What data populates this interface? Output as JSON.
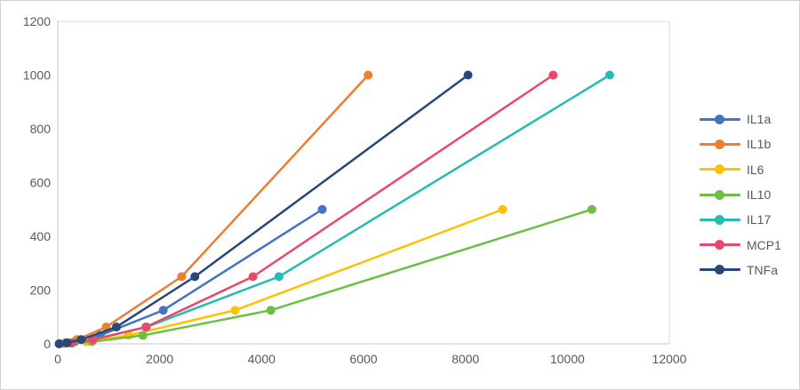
{
  "chart_data": {
    "type": "line",
    "title": "",
    "xlabel": "",
    "ylabel": "",
    "grid": false,
    "legend_position": "right",
    "x_axis": {
      "min": 0,
      "max": 12000,
      "tick_step": 2000,
      "tick_labels": [
        "0",
        "2000",
        "4000",
        "6000",
        "8000",
        "10000",
        "12000"
      ]
    },
    "y_axis": {
      "min": 0,
      "max": 1200,
      "tick_step": 200,
      "tick_labels": [
        "0",
        "200",
        "400",
        "600",
        "800",
        "1000",
        "1200"
      ]
    },
    "series": [
      {
        "name": "IL1a",
        "color": "#4472C4",
        "x": [
          25,
          133,
          332,
          830,
          2070,
          5190
        ],
        "y": [
          0,
          1.95,
          7.81,
          31.25,
          125,
          500
        ]
      },
      {
        "name": "IL1b",
        "color": "#ED7D31",
        "x": [
          25,
          152,
          380,
          950,
          2430,
          6090
        ],
        "y": [
          0,
          3.91,
          15.63,
          62.5,
          250,
          1000
        ]
      },
      {
        "name": "IL6",
        "color": "#FFC000",
        "x": [
          30,
          223,
          557,
          1390,
          3480,
          8730
        ],
        "y": [
          0,
          1.95,
          7.81,
          31.25,
          125,
          500
        ]
      },
      {
        "name": "IL10",
        "color": "#6CBE45",
        "x": [
          30,
          267,
          668,
          1670,
          4180,
          10480
        ],
        "y": [
          0,
          1.95,
          7.81,
          31.25,
          125,
          500
        ]
      },
      {
        "name": "IL17",
        "color": "#27BBB1",
        "x": [
          30,
          278,
          696,
          1740,
          4340,
          10830
        ],
        "y": [
          0,
          3.91,
          15.63,
          62.5,
          250,
          1000
        ]
      },
      {
        "name": "MCP1",
        "color": "#E8496B",
        "x": [
          35,
          277,
          692,
          1730,
          3830,
          9720
        ],
        "y": [
          0,
          3.91,
          15.63,
          62.5,
          250,
          1000
        ]
      },
      {
        "name": "TNFa",
        "color": "#274879",
        "x": [
          30,
          184,
          460,
          1150,
          2690,
          8050
        ],
        "y": [
          0,
          3.91,
          15.63,
          62.5,
          250,
          1000
        ]
      }
    ],
    "style": {
      "text_color": "#595959",
      "plot_border_color": "#D9D9D9",
      "axis_line_color": "#C9C9C9"
    }
  }
}
